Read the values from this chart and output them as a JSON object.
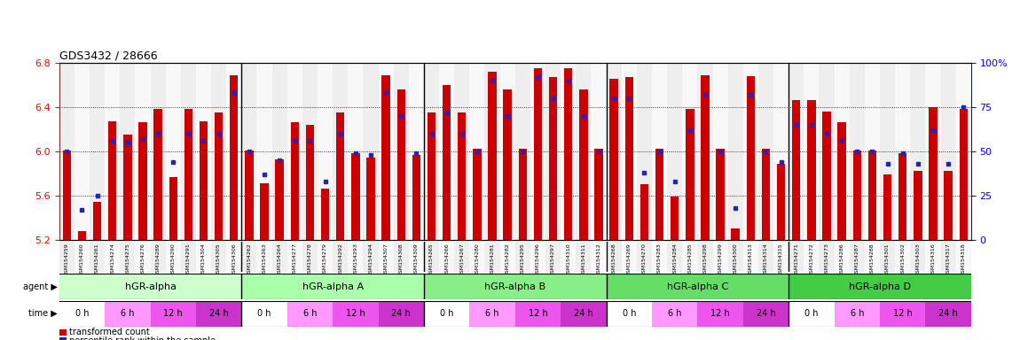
{
  "title": "GDS3432 / 28666",
  "ylim_left": [
    5.2,
    6.8
  ],
  "yticks_left": [
    5.2,
    5.6,
    6.0,
    6.4,
    6.8
  ],
  "yticks_right": [
    0,
    25,
    50,
    75,
    100
  ],
  "bar_color": "#cc0000",
  "dot_color": "#2222cc",
  "samples": [
    "GSM154259",
    "GSM154260",
    "GSM154261",
    "GSM154274",
    "GSM154275",
    "GSM154276",
    "GSM154289",
    "GSM154290",
    "GSM154291",
    "GSM154304",
    "GSM154305",
    "GSM154306",
    "GSM154262",
    "GSM154263",
    "GSM154264",
    "GSM154277",
    "GSM154278",
    "GSM154279",
    "GSM154292",
    "GSM154293",
    "GSM154294",
    "GSM154307",
    "GSM154308",
    "GSM154309",
    "GSM154265",
    "GSM154266",
    "GSM154267",
    "GSM154280",
    "GSM154281",
    "GSM154282",
    "GSM154295",
    "GSM154296",
    "GSM154297",
    "GSM154310",
    "GSM154311",
    "GSM154312",
    "GSM154268",
    "GSM154269",
    "GSM154270",
    "GSM154283",
    "GSM154284",
    "GSM154285",
    "GSM154298",
    "GSM154299",
    "GSM154300",
    "GSM154313",
    "GSM154314",
    "GSM154315",
    "GSM154271",
    "GSM154272",
    "GSM154273",
    "GSM154286",
    "GSM154287",
    "GSM154288",
    "GSM154301",
    "GSM154302",
    "GSM154303",
    "GSM154316",
    "GSM154317",
    "GSM154318"
  ],
  "bar_heights": [
    6.01,
    5.28,
    5.54,
    6.27,
    6.15,
    6.26,
    6.38,
    5.77,
    6.38,
    6.27,
    6.35,
    6.69,
    6.01,
    5.71,
    5.93,
    6.26,
    6.24,
    5.66,
    6.35,
    5.98,
    5.94,
    6.69,
    6.56,
    5.97,
    6.35,
    6.6,
    6.35,
    6.02,
    6.72,
    6.56,
    6.02,
    6.75,
    6.67,
    6.75,
    6.56,
    6.02,
    6.66,
    6.67,
    5.7,
    6.02,
    5.59,
    6.38,
    6.69,
    6.02,
    5.3,
    6.68,
    6.02,
    5.89,
    6.46,
    6.46,
    6.36,
    6.26,
    6.01,
    6.01,
    5.79,
    5.98,
    5.82,
    6.4,
    5.82,
    6.38
  ],
  "dot_percentiles": [
    50,
    17,
    25,
    56,
    55,
    57,
    60,
    44,
    60,
    56,
    60,
    83,
    50,
    37,
    45,
    56,
    56,
    33,
    60,
    49,
    48,
    83,
    70,
    49,
    60,
    72,
    60,
    50,
    90,
    70,
    50,
    92,
    80,
    90,
    70,
    50,
    80,
    80,
    38,
    50,
    33,
    62,
    82,
    50,
    18,
    82,
    50,
    44,
    65,
    65,
    60,
    56,
    50,
    50,
    43,
    49,
    43,
    62,
    43,
    75
  ],
  "groups": [
    {
      "label": "hGR-alpha",
      "start": 0,
      "end": 12,
      "color": "#ccffcc"
    },
    {
      "label": "hGR-alpha A",
      "start": 12,
      "end": 24,
      "color": "#aaffaa"
    },
    {
      "label": "hGR-alpha B",
      "start": 24,
      "end": 36,
      "color": "#88ee88"
    },
    {
      "label": "hGR-alpha C",
      "start": 36,
      "end": 48,
      "color": "#66dd66"
    },
    {
      "label": "hGR-alpha D",
      "start": 48,
      "end": 60,
      "color": "#44cc44"
    }
  ],
  "time_labels": [
    "0 h",
    "6 h",
    "12 h",
    "24 h"
  ],
  "time_colors": [
    "#ffffff",
    "#ff99ff",
    "#ee55ee",
    "#cc33cc"
  ],
  "col_bg": [
    "#eeeeee",
    "#f8f8f8"
  ]
}
